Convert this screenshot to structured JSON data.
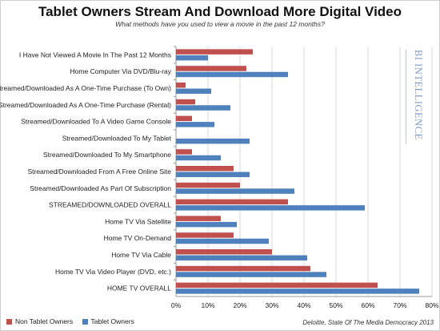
{
  "chart_data": {
    "type": "bar",
    "orientation": "horizontal",
    "title": "Tablet Owners Stream And Download More Digital Video",
    "subtitle": "What methods have you used to view a movie in the past 12 months?",
    "categories": [
      "I Have Not Viewed A Movie In The Past 12 Months",
      "Home Computer Via DVD/Blu-ray",
      "Streamed/Downloaded As A One-Time Purchase (To Own)",
      "Streamed/Downloaded As A One-Time Purchase (Rental)",
      "Streamed/Downloaded To A Video Game Console",
      "Streamed/Downloaded To My Tablet",
      "Streamed/Downloaded To My Smartphone",
      "Streamed/Downloaded From A Free Online Site",
      "Streamed/Downloaded As Part Of Subscription",
      "STREAMED/DOWNLOADED OVERALL",
      "Home TV Via Satellite",
      "Home TV On-Demand",
      "Home TV Via Cable",
      "Home TV Via Video Player (DVD, etc.)",
      "HOME TV OVERALL"
    ],
    "series": [
      {
        "name": "Non Tablet Owners",
        "color": "#c0504d",
        "values": [
          24,
          22,
          3,
          6,
          5,
          0,
          5,
          18,
          20,
          35,
          14,
          18,
          30,
          42,
          63
        ]
      },
      {
        "name": "Tablet Owners",
        "color": "#4f81bd",
        "values": [
          10,
          35,
          11,
          17,
          12,
          23,
          14,
          23,
          37,
          59,
          19,
          29,
          41,
          47,
          76
        ]
      }
    ],
    "xlim": [
      0,
      80
    ],
    "ticks": [
      "0%",
      "10%",
      "20%",
      "30%",
      "40%",
      "50%",
      "60%",
      "70%",
      "80%"
    ],
    "grid": true,
    "legend": "bottom-left"
  },
  "watermark": "BI INTELLIGENCE",
  "source": "Deloitte, State Of The Media Democracy 2013"
}
